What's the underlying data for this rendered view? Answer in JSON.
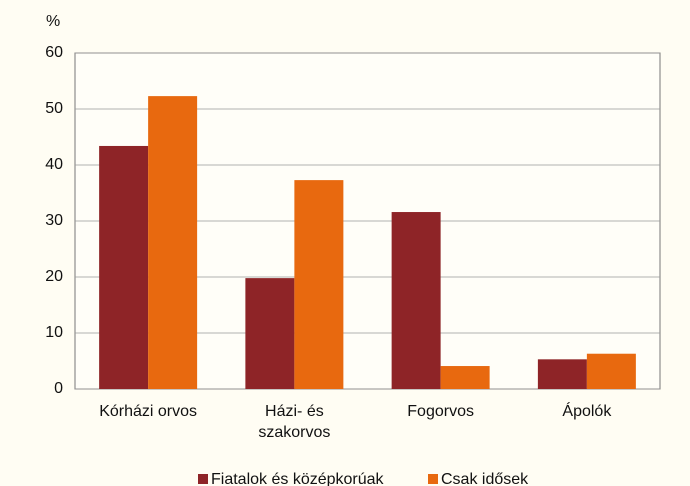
{
  "chart_data": {
    "type": "bar",
    "y_unit": "%",
    "categories": [
      "Kórházi orvos",
      "Házi- és\nszakorvos",
      "Fogorvos",
      "Ápolók"
    ],
    "series": [
      {
        "name": "Fiatalok és középkorúak",
        "color": "#8e2427",
        "values": [
          43.4,
          19.8,
          31.6,
          5.3
        ]
      },
      {
        "name": "Csak idősek",
        "color": "#e8690f",
        "values": [
          52.3,
          37.3,
          4.1,
          6.3
        ]
      }
    ],
    "ylim": [
      0,
      60
    ],
    "yticks": [
      0,
      10,
      20,
      30,
      40,
      50,
      60
    ],
    "grid": true
  }
}
